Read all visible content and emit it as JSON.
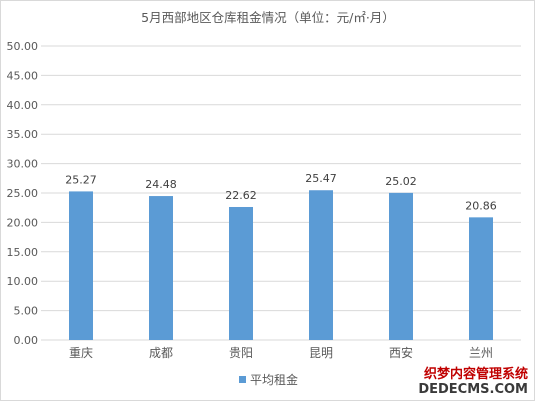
{
  "chart_data": {
    "type": "bar",
    "title": "5月西部地区仓库租金情况（单位：元/㎡·月）",
    "categories": [
      "重庆",
      "成都",
      "贵阳",
      "昆明",
      "西安",
      "兰州"
    ],
    "series": [
      {
        "name": "平均租金",
        "values": [
          25.27,
          24.48,
          22.62,
          25.47,
          25.02,
          20.86
        ]
      }
    ],
    "data_labels": [
      "25.27",
      "24.48",
      "22.62",
      "25.47",
      "25.02",
      "20.86"
    ],
    "y_ticks": [
      "0.00",
      "5.00",
      "10.00",
      "15.00",
      "20.00",
      "25.00",
      "30.00",
      "35.00",
      "40.00",
      "45.00",
      "50.00"
    ],
    "ylim": [
      0,
      50
    ],
    "grid": true,
    "legend_position": "bottom",
    "bar_color": "#5b9bd5",
    "grid_color": "#d9d9d9"
  },
  "watermark": {
    "line1": "织梦内容管理系统",
    "line2": "DEDECMS.COM"
  }
}
